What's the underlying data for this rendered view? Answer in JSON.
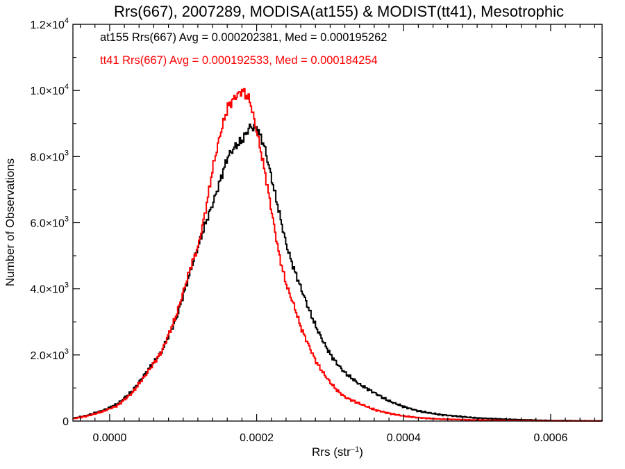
{
  "chart_data": {
    "type": "line",
    "title": "Rrs(667), 2007289, MODISA(at155) & MODIST(tt41), Mesotrophic",
    "xlabel": "Rrs (str⁻¹)",
    "ylabel": "Number of Observations",
    "xlim": [
      -5e-05,
      0.00067
    ],
    "ylim": [
      0,
      12000
    ],
    "x_ticks": [
      0.0,
      0.0002,
      0.0004,
      0.0006
    ],
    "x_tick_labels": [
      "0.0000",
      "0.0002",
      "0.0004",
      "0.0006"
    ],
    "y_ticks": [
      0,
      2000,
      4000,
      6000,
      8000,
      10000,
      12000
    ],
    "y_tick_labels": [
      {
        "mant": "0",
        "exp": ""
      },
      {
        "mant": "2.0×10",
        "exp": "3"
      },
      {
        "mant": "4.0×10",
        "exp": "3"
      },
      {
        "mant": "6.0×10",
        "exp": "3"
      },
      {
        "mant": "8.0×10",
        "exp": "3"
      },
      {
        "mant": "1.0×10",
        "exp": "4"
      },
      {
        "mant": "1.2×10",
        "exp": "4"
      }
    ],
    "grid": false,
    "step_histogram": true,
    "annotations": [
      {
        "text": "at155 Rrs(667) Avg = 0.000202381, Med = 0.000195262",
        "color": "#000000"
      },
      {
        "text": "tt41 Rrs(667) Avg = 0.000192533, Med = 0.000184254",
        "color": "#ff0000"
      }
    ],
    "series": [
      {
        "color": "#000000",
        "x": [
          -5e-05,
          -3e-05,
          -1e-05,
          1e-05,
          3e-05,
          5e-05,
          7e-05,
          9e-05,
          0.00011,
          0.00013,
          0.00014,
          0.00015,
          0.00016,
          0.00017,
          0.00018,
          0.00019,
          0.0002,
          0.00021,
          0.00022,
          0.00023,
          0.00024,
          0.00025,
          0.00026,
          0.00027,
          0.00028,
          0.00029,
          0.0003,
          0.00031,
          0.00032,
          0.00034,
          0.00036,
          0.00038,
          0.0004,
          0.00042,
          0.00045,
          0.0005,
          0.00055,
          0.0006,
          0.00067
        ],
        "values": [
          80,
          180,
          320,
          520,
          900,
          1500,
          2100,
          3100,
          4600,
          6000,
          6600,
          7300,
          8000,
          8300,
          8500,
          8900,
          8850,
          8300,
          7300,
          6300,
          5300,
          4600,
          4000,
          3400,
          2850,
          2400,
          2000,
          1700,
          1450,
          1100,
          850,
          600,
          430,
          300,
          190,
          90,
          45,
          15,
          5
        ]
      },
      {
        "color": "#ff0000",
        "x": [
          -5e-05,
          -3e-05,
          -1e-05,
          1e-05,
          3e-05,
          5e-05,
          7e-05,
          9e-05,
          0.00011,
          0.00012,
          0.00013,
          0.00014,
          0.00015,
          0.00016,
          0.00017,
          0.00018,
          0.00019,
          0.0002,
          0.00021,
          0.00022,
          0.00023,
          0.00024,
          0.00025,
          0.00026,
          0.00027,
          0.00028,
          0.00029,
          0.0003,
          0.00031,
          0.00032,
          0.00034,
          0.00036,
          0.00038,
          0.0004,
          0.00042,
          0.00045,
          0.0005,
          0.00055,
          0.0006,
          0.00067
        ],
        "values": [
          70,
          160,
          290,
          470,
          850,
          1450,
          2100,
          3200,
          4700,
          5300,
          6400,
          7700,
          8700,
          9500,
          9800,
          10000,
          9700,
          8700,
          7600,
          6300,
          5000,
          4100,
          3500,
          2800,
          2300,
          1800,
          1450,
          1150,
          900,
          720,
          520,
          340,
          230,
          150,
          100,
          60,
          30,
          15,
          6,
          2
        ]
      }
    ]
  }
}
